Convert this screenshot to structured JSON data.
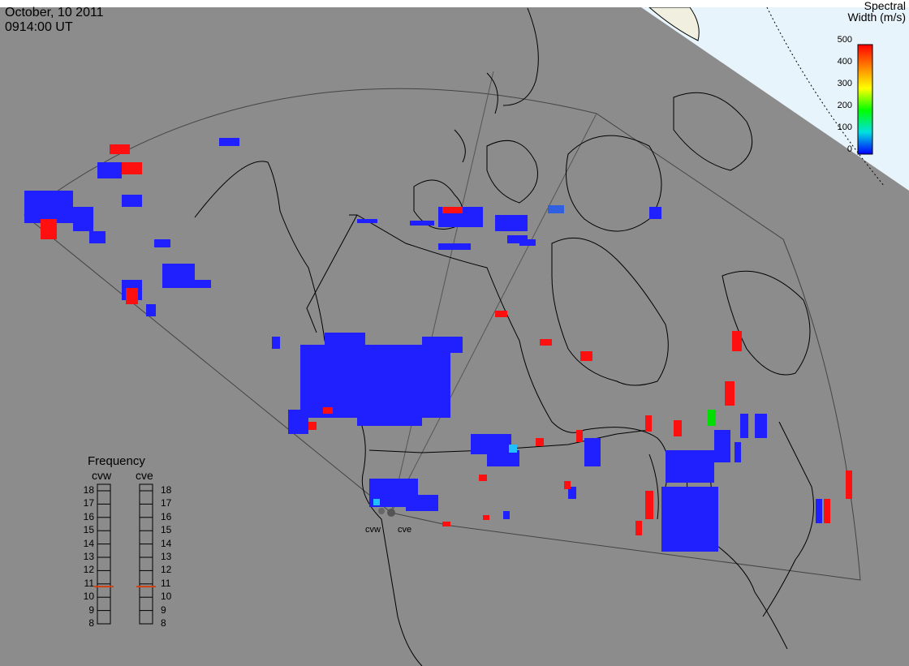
{
  "header": {
    "date": "October, 10 2011",
    "time": "0914:00 UT"
  },
  "colorbar": {
    "title_line1": "Spectral",
    "title_line2": "Width (m/s)",
    "ticks": [
      "500",
      "400",
      "300",
      "200",
      "100",
      "0"
    ],
    "colors": [
      "#ff0000",
      "#ff8000",
      "#ffff00",
      "#00ff00",
      "#00e0e0",
      "#0000ff"
    ]
  },
  "frequency_panel": {
    "title": "Frequency",
    "left_label": "cvw",
    "right_label": "cve",
    "scale": [
      "18",
      "17",
      "16",
      "15",
      "14",
      "13",
      "12",
      "11",
      "10",
      "9",
      "8"
    ],
    "cvw_value": 10.8,
    "cve_value": 10.8,
    "marker_color": "#d04010"
  },
  "radars": {
    "west": "cvw",
    "east": "cve"
  },
  "colors": {
    "background": "#8c8c8c",
    "polar_region": "#e8f4fb",
    "low_width": "#2020ff",
    "high_width": "#ff1010",
    "medium_width": "#00dd00",
    "cyan_width": "#20c0ff"
  }
}
